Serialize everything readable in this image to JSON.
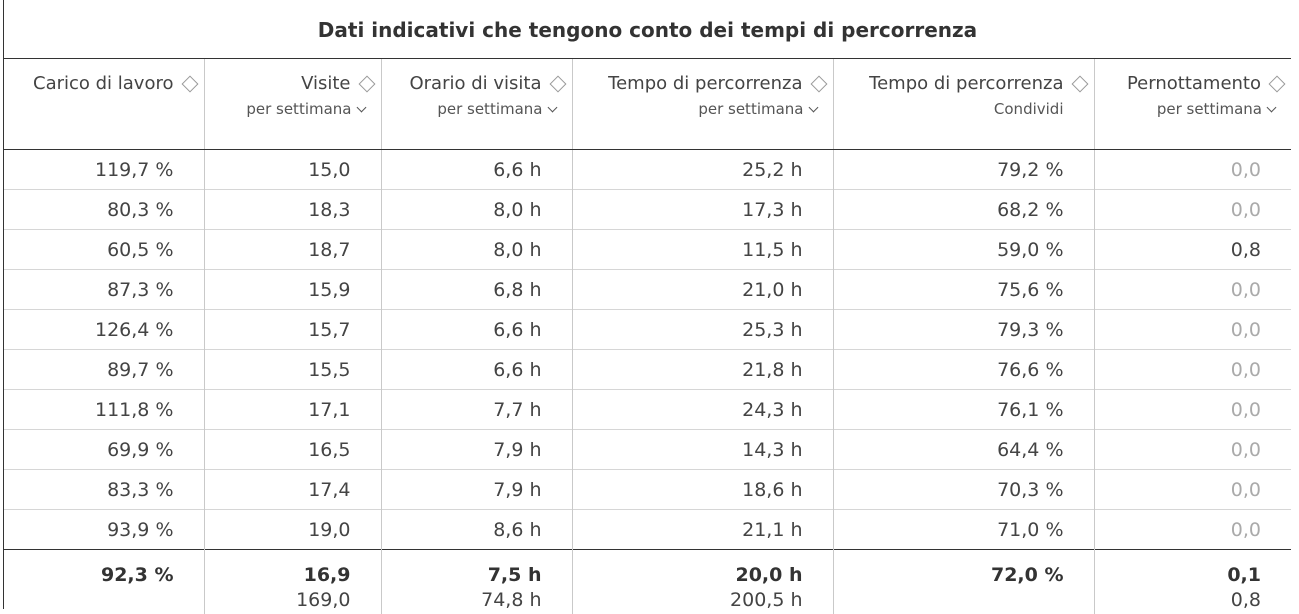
{
  "title": "Dati indicativi che tengono conto dei tempi di percorrenza",
  "columns": [
    {
      "label": "Carico di lavoro",
      "sub": ""
    },
    {
      "label": "Visite",
      "sub": "per settimana"
    },
    {
      "label": "Orario di visita",
      "sub": "per settimana"
    },
    {
      "label": "Tempo di percorrenza",
      "sub": "per settimana"
    },
    {
      "label": "Tempo di percorrenza",
      "sub": "Condividi"
    },
    {
      "label": "Pernottamento",
      "sub": "per settimana"
    }
  ],
  "rows": [
    [
      "119,7 %",
      "15,0",
      "6,6 h",
      "25,2 h",
      "79,2 %",
      "0,0"
    ],
    [
      "80,3 %",
      "18,3",
      "8,0 h",
      "17,3 h",
      "68,2 %",
      "0,0"
    ],
    [
      "60,5 %",
      "18,7",
      "8,0 h",
      "11,5 h",
      "59,0 %",
      "0,8"
    ],
    [
      "87,3 %",
      "15,9",
      "6,8 h",
      "21,0 h",
      "75,6 %",
      "0,0"
    ],
    [
      "126,4 %",
      "15,7",
      "6,6 h",
      "25,3 h",
      "79,3 %",
      "0,0"
    ],
    [
      "89,7 %",
      "15,5",
      "6,6 h",
      "21,8 h",
      "76,6 %",
      "0,0"
    ],
    [
      "111,8 %",
      "17,1",
      "7,7 h",
      "24,3 h",
      "76,1 %",
      "0,0"
    ],
    [
      "69,9 %",
      "16,5",
      "7,9 h",
      "14,3 h",
      "64,4 %",
      "0,0"
    ],
    [
      "83,3 %",
      "17,4",
      "7,9 h",
      "18,6 h",
      "70,3 %",
      "0,0"
    ],
    [
      "93,9 %",
      "19,0",
      "8,6 h",
      "21,1 h",
      "71,0 %",
      "0,0"
    ]
  ],
  "summary": [
    "92,3 %",
    "16,9",
    "7,5 h",
    "20,0 h",
    "72,0 %",
    "0,1"
  ],
  "totals": [
    "",
    "169,0",
    "74,8 h",
    "200,5 h",
    "",
    "0,8"
  ]
}
